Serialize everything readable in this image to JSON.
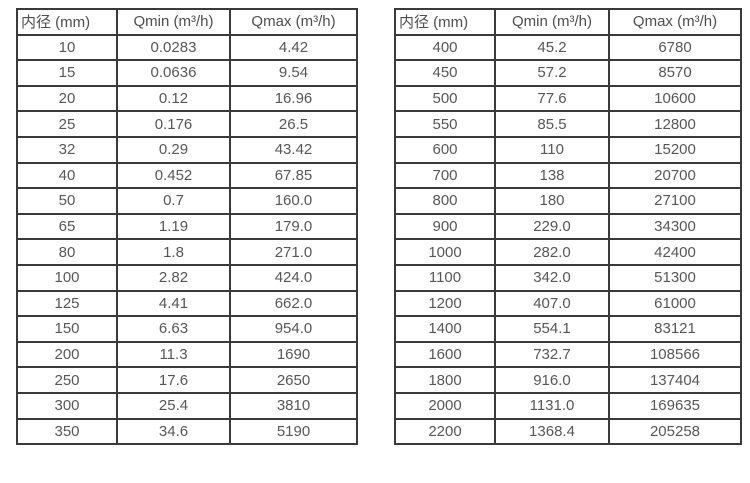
{
  "page": {
    "background_color": "#ffffff",
    "border_color": "#3a3a3a",
    "text_color": "#575757"
  },
  "tables": [
    {
      "name": "flow-table-small-diameters",
      "headers": [
        "内径 (mm)",
        "Qmin (m³/h)",
        "Qmax (m³/h)"
      ],
      "rows": [
        [
          "10",
          "0.0283",
          "4.42"
        ],
        [
          "15",
          "0.0636",
          "9.54"
        ],
        [
          "20",
          "0.12",
          "16.96"
        ],
        [
          "25",
          "0.176",
          "26.5"
        ],
        [
          "32",
          "0.29",
          "43.42"
        ],
        [
          "40",
          "0.452",
          "67.85"
        ],
        [
          "50",
          "0.7",
          "160.0"
        ],
        [
          "65",
          "1.19",
          "179.0"
        ],
        [
          "80",
          "1.8",
          "271.0"
        ],
        [
          "100",
          "2.82",
          "424.0"
        ],
        [
          "125",
          "4.41",
          "662.0"
        ],
        [
          "150",
          "6.63",
          "954.0"
        ],
        [
          "200",
          "11.3",
          "1690"
        ],
        [
          "250",
          "17.6",
          "2650"
        ],
        [
          "300",
          "25.4",
          "3810"
        ],
        [
          "350",
          "34.6",
          "5190"
        ]
      ]
    },
    {
      "name": "flow-table-large-diameters",
      "headers": [
        "内径 (mm)",
        "Qmin (m³/h)",
        "Qmax (m³/h)"
      ],
      "rows": [
        [
          "400",
          "45.2",
          "6780"
        ],
        [
          "450",
          "57.2",
          "8570"
        ],
        [
          "500",
          "77.6",
          "10600"
        ],
        [
          "550",
          "85.5",
          "12800"
        ],
        [
          "600",
          "110",
          "15200"
        ],
        [
          "700",
          "138",
          "20700"
        ],
        [
          "800",
          "180",
          "27100"
        ],
        [
          "900",
          "229.0",
          "34300"
        ],
        [
          "1000",
          "282.0",
          "42400"
        ],
        [
          "1100",
          "342.0",
          "51300"
        ],
        [
          "1200",
          "407.0",
          "61000"
        ],
        [
          "1400",
          "554.1",
          "83121"
        ],
        [
          "1600",
          "732.7",
          "108566"
        ],
        [
          "1800",
          "916.0",
          "137404"
        ],
        [
          "2000",
          "1131.0",
          "169635"
        ],
        [
          "2200",
          "1368.4",
          "205258"
        ]
      ]
    }
  ]
}
